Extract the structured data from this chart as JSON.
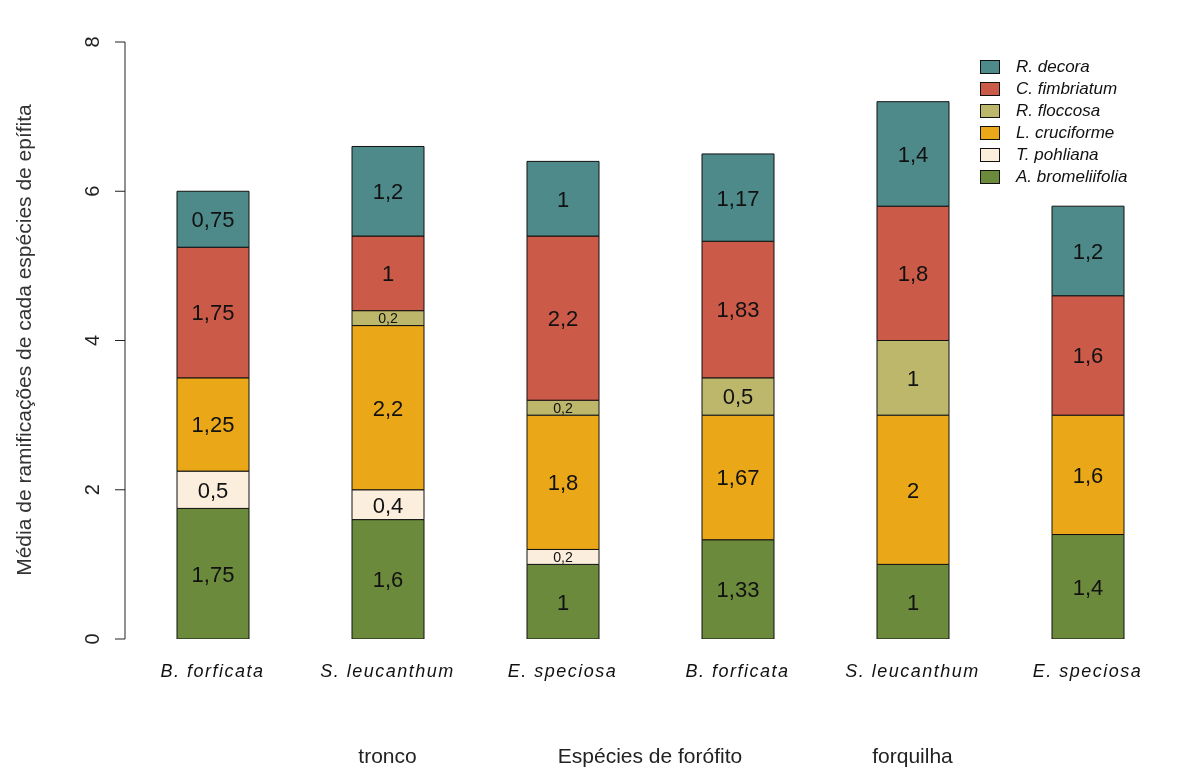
{
  "chart_data": {
    "type": "bar",
    "stacked": true,
    "xlabel": "Espécies de forófito",
    "ylabel": "Média de ramificações de cada espécies de epífita",
    "categories": [
      "B. forficata",
      "S. leucanthum",
      "E. speciosa",
      "B. forficata",
      "S. leucanthum",
      "E. speciosa"
    ],
    "annotations": [
      "tronco",
      "forquilha"
    ],
    "ylim": [
      0,
      8
    ],
    "yticks": [
      0,
      2,
      4,
      6,
      8
    ],
    "grid": false,
    "legend": "top right",
    "series": [
      {
        "name": "A. bromeliifolia",
        "color": "#6b8a3c",
        "values": [
          1.75,
          1.6,
          1,
          1.33,
          1,
          1.4
        ],
        "value_labels": [
          "1,75",
          "1,6",
          "1",
          "1,33",
          "1",
          "1,4"
        ]
      },
      {
        "name": "T. pohliana",
        "color": "#fbeedd",
        "values": [
          0.5,
          0.4,
          0.2,
          null,
          null,
          null
        ],
        "value_labels": [
          "0,5",
          "0,4",
          "0,2",
          null,
          null,
          null
        ]
      },
      {
        "name": "L. cruciforme",
        "color": "#eaa818",
        "values": [
          1.25,
          2.2,
          1.8,
          1.67,
          2,
          1.6
        ],
        "value_labels": [
          "1,25",
          "2,2",
          "1,8",
          "1,67",
          "2",
          "1,6"
        ]
      },
      {
        "name": "R. floccosa",
        "color": "#bdb76b",
        "values": [
          null,
          0.2,
          0.2,
          0.5,
          1,
          null
        ],
        "value_labels": [
          null,
          "0,2",
          "0,2",
          "0,5",
          "1",
          null
        ]
      },
      {
        "name": "C. fimbriatum",
        "color": "#cc5a48",
        "values": [
          1.75,
          1,
          2.2,
          1.83,
          1.8,
          1.6
        ],
        "value_labels": [
          "1,75",
          "1",
          "2,2",
          "1,83",
          "1,8",
          "1,6"
        ]
      },
      {
        "name": "R. decora",
        "color": "#4e8a8a",
        "values": [
          0.75,
          1.2,
          1,
          1.17,
          1.4,
          1.2
        ],
        "value_labels": [
          "0,75",
          "1,2",
          "1",
          "1,17",
          "1,4",
          "1,2"
        ]
      }
    ]
  }
}
